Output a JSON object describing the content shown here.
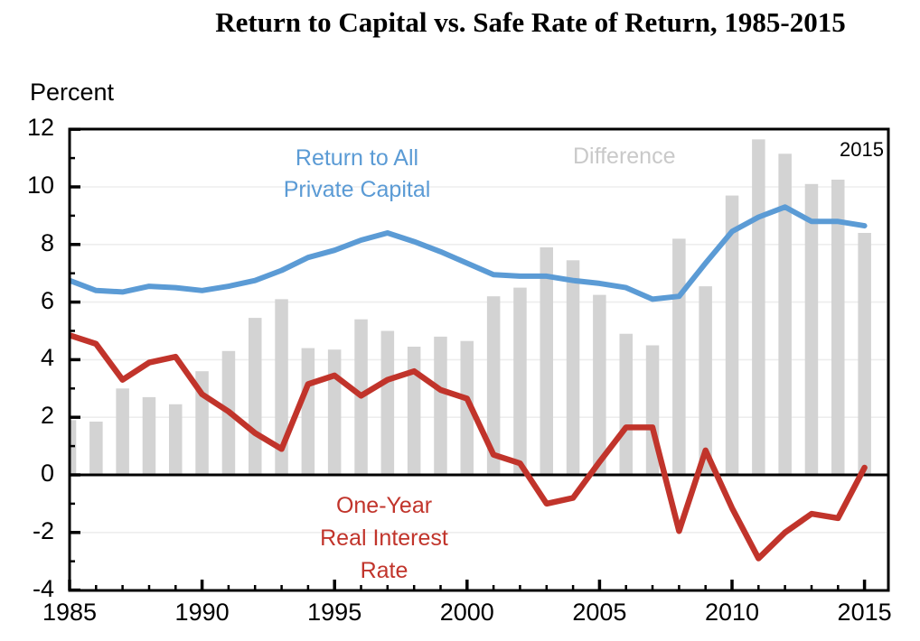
{
  "title": "Return to Capital vs. Safe Rate of Return, 1985-2015",
  "ylabel": "Percent",
  "annotations": {
    "blue_label": "Return to All\nPrivate Capital",
    "diff_label": "Difference",
    "red_label": "One-Year\nReal Interest\nRate",
    "year_label": "2015"
  },
  "colors": {
    "blue_line": "#5b9bd5",
    "red_line": "#c1342b",
    "bar_gray": "#d3d3d3",
    "diff_label_gray": "#c9c9c9",
    "gridline": "#ededed",
    "axis": "#000000"
  },
  "axes": {
    "y": {
      "major_ticks": [
        12,
        10,
        8,
        6,
        4,
        2,
        0,
        -2,
        -4
      ],
      "major_tick_labels": [
        "12",
        "10",
        "8",
        "6",
        "4",
        "2",
        "0",
        "-2",
        "-4"
      ],
      "minor_ticks": [
        11,
        9,
        7,
        5,
        3,
        1,
        -1,
        -3
      ],
      "gridlines_at": [
        10,
        8,
        6,
        4,
        2,
        -2
      ]
    },
    "x": {
      "major_ticks": [
        1985,
        1990,
        1995,
        2000,
        2005,
        2010,
        2015
      ],
      "major_tick_labels": [
        "1985",
        "1990",
        "1995",
        "2000",
        "2005",
        "2010",
        "2015"
      ]
    }
  },
  "chart_data": {
    "type": "combo-bar-line",
    "title": "Return to Capital vs. Safe Rate of Return, 1985-2015",
    "xlabel": "",
    "ylabel": "Percent",
    "ylim": [
      -4,
      12
    ],
    "xlim": [
      1985,
      2016
    ],
    "grid": "faint horizontal gridlines at even values, solid black zero line, full black frame",
    "legend_position": "in-plot text annotations",
    "x": [
      1985,
      1986,
      1987,
      1988,
      1989,
      1990,
      1991,
      1992,
      1993,
      1994,
      1995,
      1996,
      1997,
      1998,
      1999,
      2000,
      2001,
      2002,
      2003,
      2004,
      2005,
      2006,
      2007,
      2008,
      2009,
      2010,
      2011,
      2012,
      2013,
      2014,
      2015
    ],
    "series": [
      {
        "name": "Return to All Private Capital",
        "type": "line",
        "color": "#5b9bd5",
        "values": [
          6.75,
          6.4,
          6.35,
          6.55,
          6.5,
          6.4,
          6.55,
          6.75,
          7.1,
          7.55,
          7.8,
          8.15,
          8.4,
          8.1,
          7.75,
          7.35,
          6.95,
          6.9,
          6.9,
          6.75,
          6.65,
          6.5,
          6.1,
          6.2,
          7.35,
          8.45,
          8.95,
          9.3,
          8.8,
          8.8,
          8.65
        ]
      },
      {
        "name": "One-Year Real Interest Rate",
        "type": "line",
        "color": "#c1342b",
        "values": [
          4.85,
          4.55,
          3.3,
          3.9,
          4.1,
          2.8,
          2.2,
          1.45,
          0.9,
          3.15,
          3.45,
          2.75,
          3.3,
          3.6,
          2.95,
          2.65,
          0.7,
          0.4,
          -1.0,
          -0.8,
          0.45,
          1.65,
          1.65,
          -1.95,
          0.85,
          -1.15,
          -2.9,
          -2.0,
          -1.35,
          -1.5,
          0.25
        ]
      },
      {
        "name": "Difference",
        "type": "bar",
        "color": "#d3d3d3",
        "values": [
          1.9,
          1.85,
          3.0,
          2.7,
          2.45,
          3.6,
          4.3,
          5.45,
          6.1,
          4.4,
          4.35,
          5.4,
          5.0,
          4.45,
          4.8,
          4.65,
          6.2,
          6.5,
          7.9,
          7.45,
          6.25,
          4.9,
          4.5,
          8.2,
          6.55,
          9.7,
          11.65,
          11.15,
          10.1,
          10.25,
          8.4
        ]
      }
    ]
  }
}
